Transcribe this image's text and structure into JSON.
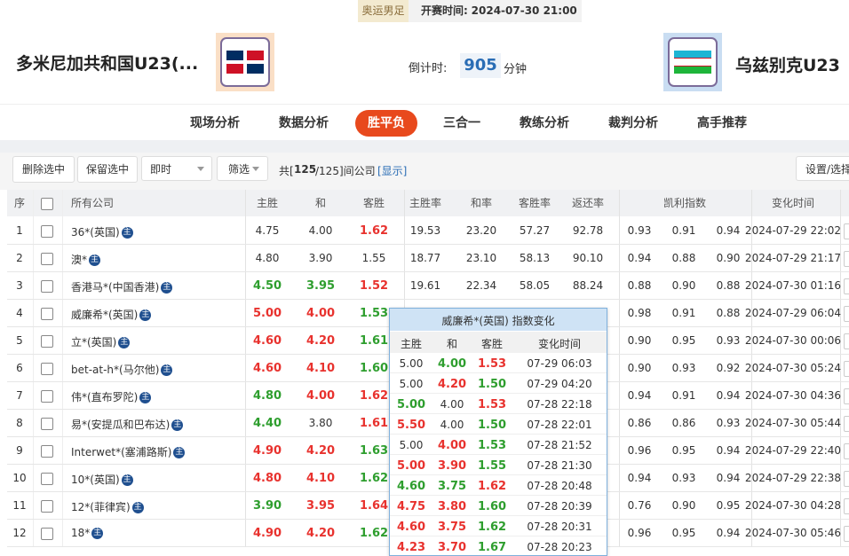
{
  "header": {
    "category": "奥运男足",
    "start_label": "开赛时间:",
    "start_time": "2024-07-30 21:00",
    "home": "多米尼加共和国U23(...",
    "away": "乌兹别克U23",
    "countdown_label": "倒计时:",
    "countdown": "905",
    "countdown_unit": "分钟"
  },
  "tabs": {
    "items": [
      "现场分析",
      "数据分析",
      "胜平负",
      "三合一",
      "教练分析",
      "裁判分析",
      "高手推荐"
    ],
    "active": 2
  },
  "toolbar": {
    "buttons": [
      "删除选中",
      "保留选中"
    ],
    "select": "即时",
    "filter": "筛选",
    "count_prefix": "共[",
    "count_shown": "125",
    "count_suffix": "/125]间公司",
    "show": "[显示]",
    "settings": "设置/选择"
  },
  "table": {
    "columns": [
      "序",
      "所有公司",
      "主胜",
      "和",
      "客胜",
      "主胜率",
      "和率",
      "客胜率",
      "返还率",
      "凯利指数",
      "变化时间"
    ],
    "badge": "主",
    "rows": [
      {
        "no": "1",
        "company": "36*(英国)",
        "odds": [
          "4.75",
          "4.00",
          "1.62"
        ],
        "odds_colors": [
          "#333",
          "#333",
          "#e8322e"
        ],
        "rates": [
          "19.53",
          "23.20",
          "57.27",
          "92.78"
        ],
        "kelly": [
          "0.93",
          "0.91",
          "0.94"
        ],
        "time": "2024-07-29 22:02"
      },
      {
        "no": "2",
        "company": "澳*",
        "odds": [
          "4.80",
          "3.90",
          "1.55"
        ],
        "odds_colors": [
          "#333",
          "#333",
          "#333"
        ],
        "rates": [
          "18.77",
          "23.10",
          "58.13",
          "90.10"
        ],
        "kelly": [
          "0.94",
          "0.88",
          "0.90"
        ],
        "time": "2024-07-29 21:17"
      },
      {
        "no": "3",
        "company": "香港马*(中国香港)",
        "odds": [
          "4.50",
          "3.95",
          "1.52"
        ],
        "odds_colors": [
          "#2e9e2e",
          "#2e9e2e",
          "#e8322e"
        ],
        "rates": [
          "19.61",
          "22.34",
          "58.05",
          "88.24"
        ],
        "kelly": [
          "0.88",
          "0.90",
          "0.88"
        ],
        "time": "2024-07-30 01:16"
      },
      {
        "no": "4",
        "company": "威廉希*(英国)",
        "odds": [
          "5.00",
          "4.00",
          "1.53"
        ],
        "odds_colors": [
          "#e8322e",
          "#e8322e",
          "#2e9e2e"
        ],
        "kelly": [
          "0.98",
          "0.91",
          "0.88"
        ],
        "time": "2024-07-29 06:04"
      },
      {
        "no": "5",
        "company": "立*(英国)",
        "odds": [
          "4.60",
          "4.20",
          "1.61"
        ],
        "odds_colors": [
          "#e8322e",
          "#e8322e",
          "#2e9e2e"
        ],
        "kelly": [
          "0.90",
          "0.95",
          "0.93"
        ],
        "time": "2024-07-30 00:06"
      },
      {
        "no": "6",
        "company": "bet-at-h*(马尔他)",
        "odds": [
          "4.60",
          "4.10",
          "1.60"
        ],
        "odds_colors": [
          "#e8322e",
          "#e8322e",
          "#2e9e2e"
        ],
        "kelly": [
          "0.90",
          "0.93",
          "0.92"
        ],
        "time": "2024-07-30 05:24"
      },
      {
        "no": "7",
        "company": "伟*(直布罗陀)",
        "odds": [
          "4.80",
          "4.00",
          "1.62"
        ],
        "odds_colors": [
          "#2e9e2e",
          "#e8322e",
          "#e8322e"
        ],
        "kelly": [
          "0.94",
          "0.91",
          "0.94"
        ],
        "time": "2024-07-30 04:36"
      },
      {
        "no": "8",
        "company": "易*(安提瓜和巴布达)",
        "odds": [
          "4.40",
          "3.80",
          "1.61"
        ],
        "odds_colors": [
          "#2e9e2e",
          "#333",
          "#e8322e"
        ],
        "kelly": [
          "0.86",
          "0.86",
          "0.93"
        ],
        "time": "2024-07-30 05:44"
      },
      {
        "no": "9",
        "company": "Interwet*(塞浦路斯)",
        "odds": [
          "4.90",
          "4.20",
          "1.63"
        ],
        "odds_colors": [
          "#e8322e",
          "#e8322e",
          "#2e9e2e"
        ],
        "kelly": [
          "0.96",
          "0.95",
          "0.94"
        ],
        "time": "2024-07-29 22:40"
      },
      {
        "no": "10",
        "company": "10*(英国)",
        "odds": [
          "4.80",
          "4.10",
          "1.62"
        ],
        "odds_colors": [
          "#e8322e",
          "#e8322e",
          "#2e9e2e"
        ],
        "kelly": [
          "0.94",
          "0.93",
          "0.94"
        ],
        "time": "2024-07-29 22:38"
      },
      {
        "no": "11",
        "company": "12*(菲律宾)",
        "odds": [
          "3.90",
          "3.95",
          "1.64"
        ],
        "odds_colors": [
          "#2e9e2e",
          "#e8322e",
          "#e8322e"
        ],
        "kelly": [
          "0.76",
          "0.90",
          "0.95"
        ],
        "time": "2024-07-30 04:28"
      },
      {
        "no": "12",
        "company": "18*",
        "odds": [
          "4.90",
          "4.20",
          "1.62"
        ],
        "odds_colors": [
          "#e8322e",
          "#e8322e",
          "#2e9e2e"
        ],
        "kelly": [
          "0.96",
          "0.95",
          "0.94"
        ],
        "time": "2024-07-30 05:46"
      }
    ]
  },
  "popup": {
    "title": "威廉希*(英国) 指数变化",
    "columns": [
      "主胜",
      "和",
      "客胜",
      "变化时间"
    ],
    "rows": [
      {
        "odds": [
          "5.00",
          "4.00",
          "1.53"
        ],
        "colors": [
          "#333",
          "#2e9e2e",
          "#e8322e"
        ],
        "time": "07-29 06:03"
      },
      {
        "odds": [
          "5.00",
          "4.20",
          "1.50"
        ],
        "colors": [
          "#333",
          "#e8322e",
          "#2e9e2e"
        ],
        "time": "07-29 04:20"
      },
      {
        "odds": [
          "5.00",
          "4.00",
          "1.53"
        ],
        "colors": [
          "#2e9e2e",
          "#333",
          "#e8322e"
        ],
        "time": "07-28 22:18"
      },
      {
        "odds": [
          "5.50",
          "4.00",
          "1.50"
        ],
        "colors": [
          "#e8322e",
          "#333",
          "#2e9e2e"
        ],
        "time": "07-28 22:01"
      },
      {
        "odds": [
          "5.00",
          "4.00",
          "1.53"
        ],
        "colors": [
          "#333",
          "#e8322e",
          "#2e9e2e"
        ],
        "time": "07-28 21:52"
      },
      {
        "odds": [
          "5.00",
          "3.90",
          "1.55"
        ],
        "colors": [
          "#e8322e",
          "#e8322e",
          "#2e9e2e"
        ],
        "time": "07-28 21:30"
      },
      {
        "odds": [
          "4.60",
          "3.75",
          "1.62"
        ],
        "colors": [
          "#2e9e2e",
          "#2e9e2e",
          "#e8322e"
        ],
        "time": "07-28 20:48"
      },
      {
        "odds": [
          "4.75",
          "3.80",
          "1.60"
        ],
        "colors": [
          "#e8322e",
          "#e8322e",
          "#2e9e2e"
        ],
        "time": "07-28 20:39"
      },
      {
        "odds": [
          "4.60",
          "3.75",
          "1.62"
        ],
        "colors": [
          "#e8322e",
          "#e8322e",
          "#2e9e2e"
        ],
        "time": "07-28 20:31"
      },
      {
        "odds": [
          "4.23",
          "3.70",
          "1.67"
        ],
        "colors": [
          "#e8322e",
          "#e8322e",
          "#2e9e2e"
        ],
        "time": "07-28 20:23"
      }
    ]
  }
}
